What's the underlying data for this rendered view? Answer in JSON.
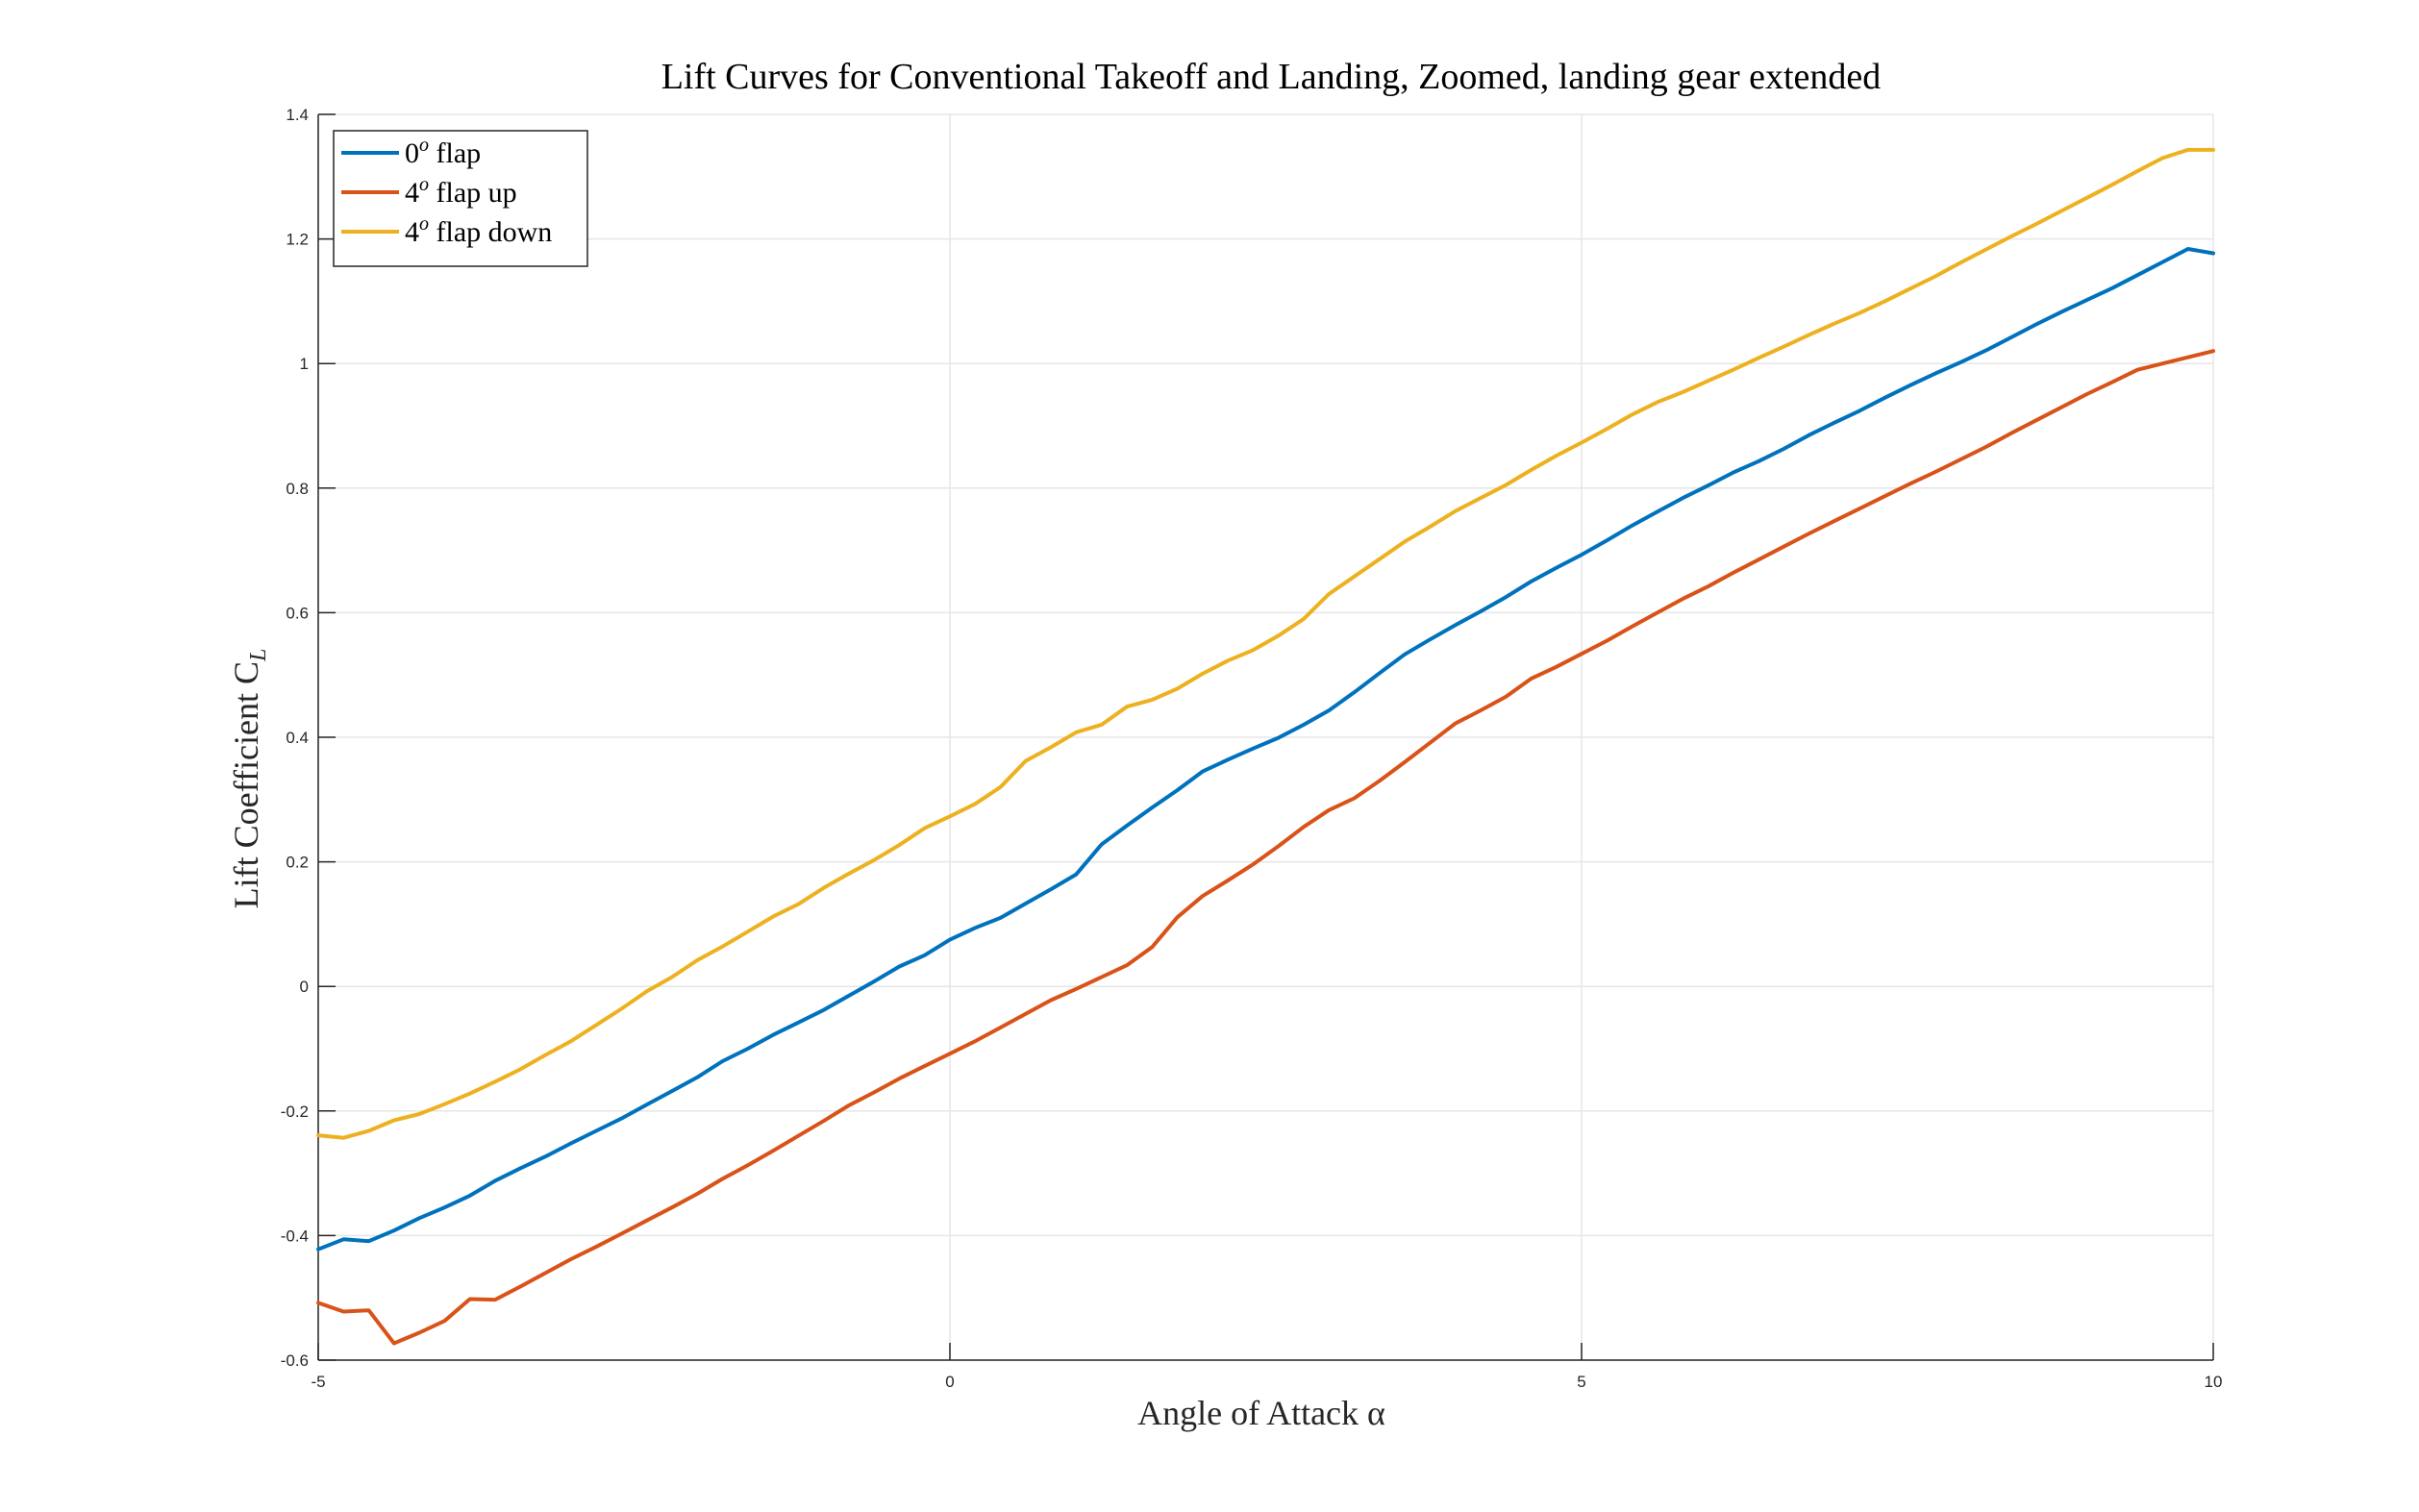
{
  "chart_data": {
    "type": "line",
    "title": "Lift Curves for Conventional Takeoff and Landing, Zoomed, landing gear extended",
    "xlabel": "Angle of Attack α",
    "ylabel": "Lift Coefficient C",
    "ylabel_sub": "L",
    "xlim": [
      -5,
      10
    ],
    "ylim": [
      -0.6,
      1.4
    ],
    "xticks": [
      -5,
      0,
      5,
      10
    ],
    "xtick_labels": [
      "-5",
      "0",
      "5",
      "10"
    ],
    "yticks": [
      -0.6,
      -0.4,
      -0.2,
      0,
      0.2,
      0.4,
      0.6,
      0.8,
      1.0,
      1.2,
      1.4
    ],
    "ytick_labels": [
      "-0.6",
      "-0.4",
      "-0.2",
      "0",
      "0.2",
      "0.4",
      "0.6",
      "0.8",
      "1",
      "1.2",
      "1.4"
    ],
    "grid": true,
    "legend_position": "top-left",
    "series": [
      {
        "name": "0",
        "name_sup": "o",
        "name_suffix": " flap",
        "color": "#0072BD",
        "points": [
          [
            -5,
            -0.422
          ],
          [
            -4.8,
            -0.406
          ],
          [
            -4.6,
            -0.409
          ],
          [
            -4.4,
            -0.392
          ],
          [
            -4.2,
            -0.372
          ],
          [
            -4,
            -0.355
          ],
          [
            -3.8,
            -0.336
          ],
          [
            -3.6,
            -0.312
          ],
          [
            -3.4,
            -0.292
          ],
          [
            -3.2,
            -0.273
          ],
          [
            -3,
            -0.252
          ],
          [
            -2.8,
            -0.232
          ],
          [
            -2.6,
            -0.212
          ],
          [
            -2.4,
            -0.19
          ],
          [
            -2.2,
            -0.168
          ],
          [
            -2,
            -0.146
          ],
          [
            -1.8,
            -0.12
          ],
          [
            -1.6,
            -0.1
          ],
          [
            -1.4,
            -0.078
          ],
          [
            -1.2,
            -0.058
          ],
          [
            -1,
            -0.038
          ],
          [
            -0.8,
            -0.015
          ],
          [
            -0.6,
            0.008
          ],
          [
            -0.4,
            0.032
          ],
          [
            -0.2,
            0.05
          ],
          [
            0,
            0.075
          ],
          [
            0.2,
            0.094
          ],
          [
            0.4,
            0.11
          ],
          [
            0.6,
            0.133
          ],
          [
            0.8,
            0.156
          ],
          [
            1,
            0.18
          ],
          [
            1.2,
            0.228
          ],
          [
            1.4,
            0.258
          ],
          [
            1.6,
            0.287
          ],
          [
            1.8,
            0.315
          ],
          [
            2,
            0.345
          ],
          [
            2.2,
            0.364
          ],
          [
            2.4,
            0.382
          ],
          [
            2.6,
            0.399
          ],
          [
            2.8,
            0.42
          ],
          [
            3,
            0.443
          ],
          [
            3.2,
            0.472
          ],
          [
            3.4,
            0.503
          ],
          [
            3.6,
            0.533
          ],
          [
            3.8,
            0.557
          ],
          [
            4,
            0.58
          ],
          [
            4.2,
            0.602
          ],
          [
            4.4,
            0.625
          ],
          [
            4.6,
            0.65
          ],
          [
            4.8,
            0.672
          ],
          [
            5,
            0.693
          ],
          [
            5.2,
            0.716
          ],
          [
            5.4,
            0.74
          ],
          [
            5.6,
            0.762
          ],
          [
            5.8,
            0.784
          ],
          [
            6,
            0.804
          ],
          [
            6.2,
            0.825
          ],
          [
            6.4,
            0.843
          ],
          [
            6.6,
            0.863
          ],
          [
            6.8,
            0.885
          ],
          [
            7,
            0.905
          ],
          [
            7.2,
            0.924
          ],
          [
            7.4,
            0.945
          ],
          [
            7.6,
            0.965
          ],
          [
            7.8,
            0.984
          ],
          [
            8,
            1.002
          ],
          [
            8.2,
            1.021
          ],
          [
            8.4,
            1.042
          ],
          [
            8.6,
            1.063
          ],
          [
            8.8,
            1.083
          ],
          [
            9,
            1.102
          ],
          [
            9.2,
            1.121
          ],
          [
            9.4,
            1.142
          ],
          [
            9.6,
            1.163
          ],
          [
            9.8,
            1.184
          ],
          [
            10,
            1.177
          ]
        ]
      },
      {
        "name": "4",
        "name_sup": "o",
        "name_suffix": " flap up",
        "color": "#D95319",
        "points": [
          [
            -5,
            -0.508
          ],
          [
            -4.8,
            -0.522
          ],
          [
            -4.6,
            -0.52
          ],
          [
            -4.4,
            -0.573
          ],
          [
            -4.2,
            -0.556
          ],
          [
            -4,
            -0.537
          ],
          [
            -3.8,
            -0.502
          ],
          [
            -3.6,
            -0.503
          ],
          [
            -3.4,
            -0.482
          ],
          [
            -3.2,
            -0.46
          ],
          [
            -3,
            -0.438
          ],
          [
            -2.8,
            -0.418
          ],
          [
            -2.6,
            -0.397
          ],
          [
            -2.4,
            -0.376
          ],
          [
            -2.2,
            -0.355
          ],
          [
            -2,
            -0.333
          ],
          [
            -1.8,
            -0.309
          ],
          [
            -1.6,
            -0.287
          ],
          [
            -1.4,
            -0.264
          ],
          [
            -1.2,
            -0.24
          ],
          [
            -1,
            -0.216
          ],
          [
            -0.8,
            -0.191
          ],
          [
            -0.6,
            -0.17
          ],
          [
            -0.4,
            -0.148
          ],
          [
            -0.2,
            -0.128
          ],
          [
            0,
            -0.108
          ],
          [
            0.2,
            -0.088
          ],
          [
            0.4,
            -0.066
          ],
          [
            0.6,
            -0.044
          ],
          [
            0.8,
            -0.022
          ],
          [
            1,
            -0.004
          ],
          [
            1.2,
            0.015
          ],
          [
            1.4,
            0.034
          ],
          [
            1.6,
            0.063
          ],
          [
            1.8,
            0.111
          ],
          [
            2,
            0.145
          ],
          [
            2.2,
            0.17
          ],
          [
            2.4,
            0.196
          ],
          [
            2.6,
            0.225
          ],
          [
            2.8,
            0.256
          ],
          [
            3,
            0.283
          ],
          [
            3.2,
            0.302
          ],
          [
            3.4,
            0.33
          ],
          [
            3.6,
            0.36
          ],
          [
            3.8,
            0.391
          ],
          [
            4,
            0.422
          ],
          [
            4.2,
            0.443
          ],
          [
            4.4,
            0.465
          ],
          [
            4.6,
            0.494
          ],
          [
            4.8,
            0.513
          ],
          [
            5,
            0.534
          ],
          [
            5.2,
            0.555
          ],
          [
            5.4,
            0.578
          ],
          [
            5.6,
            0.6
          ],
          [
            5.8,
            0.622
          ],
          [
            6,
            0.642
          ],
          [
            6.2,
            0.664
          ],
          [
            6.4,
            0.685
          ],
          [
            6.6,
            0.706
          ],
          [
            6.8,
            0.727
          ],
          [
            7,
            0.747
          ],
          [
            7.2,
            0.767
          ],
          [
            7.4,
            0.787
          ],
          [
            7.6,
            0.807
          ],
          [
            7.8,
            0.826
          ],
          [
            8,
            0.846
          ],
          [
            8.2,
            0.866
          ],
          [
            8.4,
            0.888
          ],
          [
            8.6,
            0.909
          ],
          [
            8.8,
            0.93
          ],
          [
            9,
            0.951
          ],
          [
            9.2,
            0.97
          ],
          [
            9.4,
            0.99
          ],
          [
            9.6,
            1.0
          ],
          [
            9.8,
            1.01
          ],
          [
            10,
            1.02
          ]
        ]
      },
      {
        "name": "4",
        "name_sup": "o",
        "name_suffix": " flap down",
        "color": "#EDB120",
        "points": [
          [
            -5,
            -0.239
          ],
          [
            -4.8,
            -0.243
          ],
          [
            -4.6,
            -0.232
          ],
          [
            -4.4,
            -0.215
          ],
          [
            -4.2,
            -0.205
          ],
          [
            -4,
            -0.189
          ],
          [
            -3.8,
            -0.172
          ],
          [
            -3.6,
            -0.153
          ],
          [
            -3.4,
            -0.133
          ],
          [
            -3.2,
            -0.11
          ],
          [
            -3,
            -0.088
          ],
          [
            -2.8,
            -0.062
          ],
          [
            -2.6,
            -0.036
          ],
          [
            -2.4,
            -0.008
          ],
          [
            -2.2,
            0.015
          ],
          [
            -2,
            0.042
          ],
          [
            -1.8,
            0.064
          ],
          [
            -1.6,
            0.088
          ],
          [
            -1.4,
            0.112
          ],
          [
            -1.2,
            0.132
          ],
          [
            -1,
            0.158
          ],
          [
            -0.8,
            0.181
          ],
          [
            -0.6,
            0.203
          ],
          [
            -0.4,
            0.227
          ],
          [
            -0.2,
            0.254
          ],
          [
            0,
            0.273
          ],
          [
            0.2,
            0.293
          ],
          [
            0.4,
            0.32
          ],
          [
            0.6,
            0.362
          ],
          [
            0.8,
            0.384
          ],
          [
            1,
            0.408
          ],
          [
            1.2,
            0.42
          ],
          [
            1.4,
            0.449
          ],
          [
            1.6,
            0.46
          ],
          [
            1.8,
            0.478
          ],
          [
            2,
            0.502
          ],
          [
            2.2,
            0.523
          ],
          [
            2.4,
            0.54
          ],
          [
            2.6,
            0.563
          ],
          [
            2.8,
            0.59
          ],
          [
            3,
            0.63
          ],
          [
            3.2,
            0.658
          ],
          [
            3.4,
            0.686
          ],
          [
            3.6,
            0.714
          ],
          [
            3.8,
            0.738
          ],
          [
            4,
            0.763
          ],
          [
            4.2,
            0.784
          ],
          [
            4.4,
            0.805
          ],
          [
            4.6,
            0.829
          ],
          [
            4.8,
            0.852
          ],
          [
            5,
            0.873
          ],
          [
            5.2,
            0.895
          ],
          [
            5.4,
            0.918
          ],
          [
            5.6,
            0.938
          ],
          [
            5.8,
            0.954
          ],
          [
            6,
            0.972
          ],
          [
            6.2,
            0.99
          ],
          [
            6.4,
            1.009
          ],
          [
            6.6,
            1.027
          ],
          [
            6.8,
            1.046
          ],
          [
            7,
            1.064
          ],
          [
            7.2,
            1.081
          ],
          [
            7.4,
            1.1
          ],
          [
            7.6,
            1.12
          ],
          [
            7.8,
            1.14
          ],
          [
            8,
            1.162
          ],
          [
            8.2,
            1.183
          ],
          [
            8.4,
            1.204
          ],
          [
            8.6,
            1.224
          ],
          [
            8.8,
            1.245
          ],
          [
            9,
            1.266
          ],
          [
            9.2,
            1.287
          ],
          [
            9.4,
            1.309
          ],
          [
            9.6,
            1.33
          ],
          [
            9.8,
            1.343
          ],
          [
            10,
            1.343
          ]
        ]
      }
    ]
  }
}
